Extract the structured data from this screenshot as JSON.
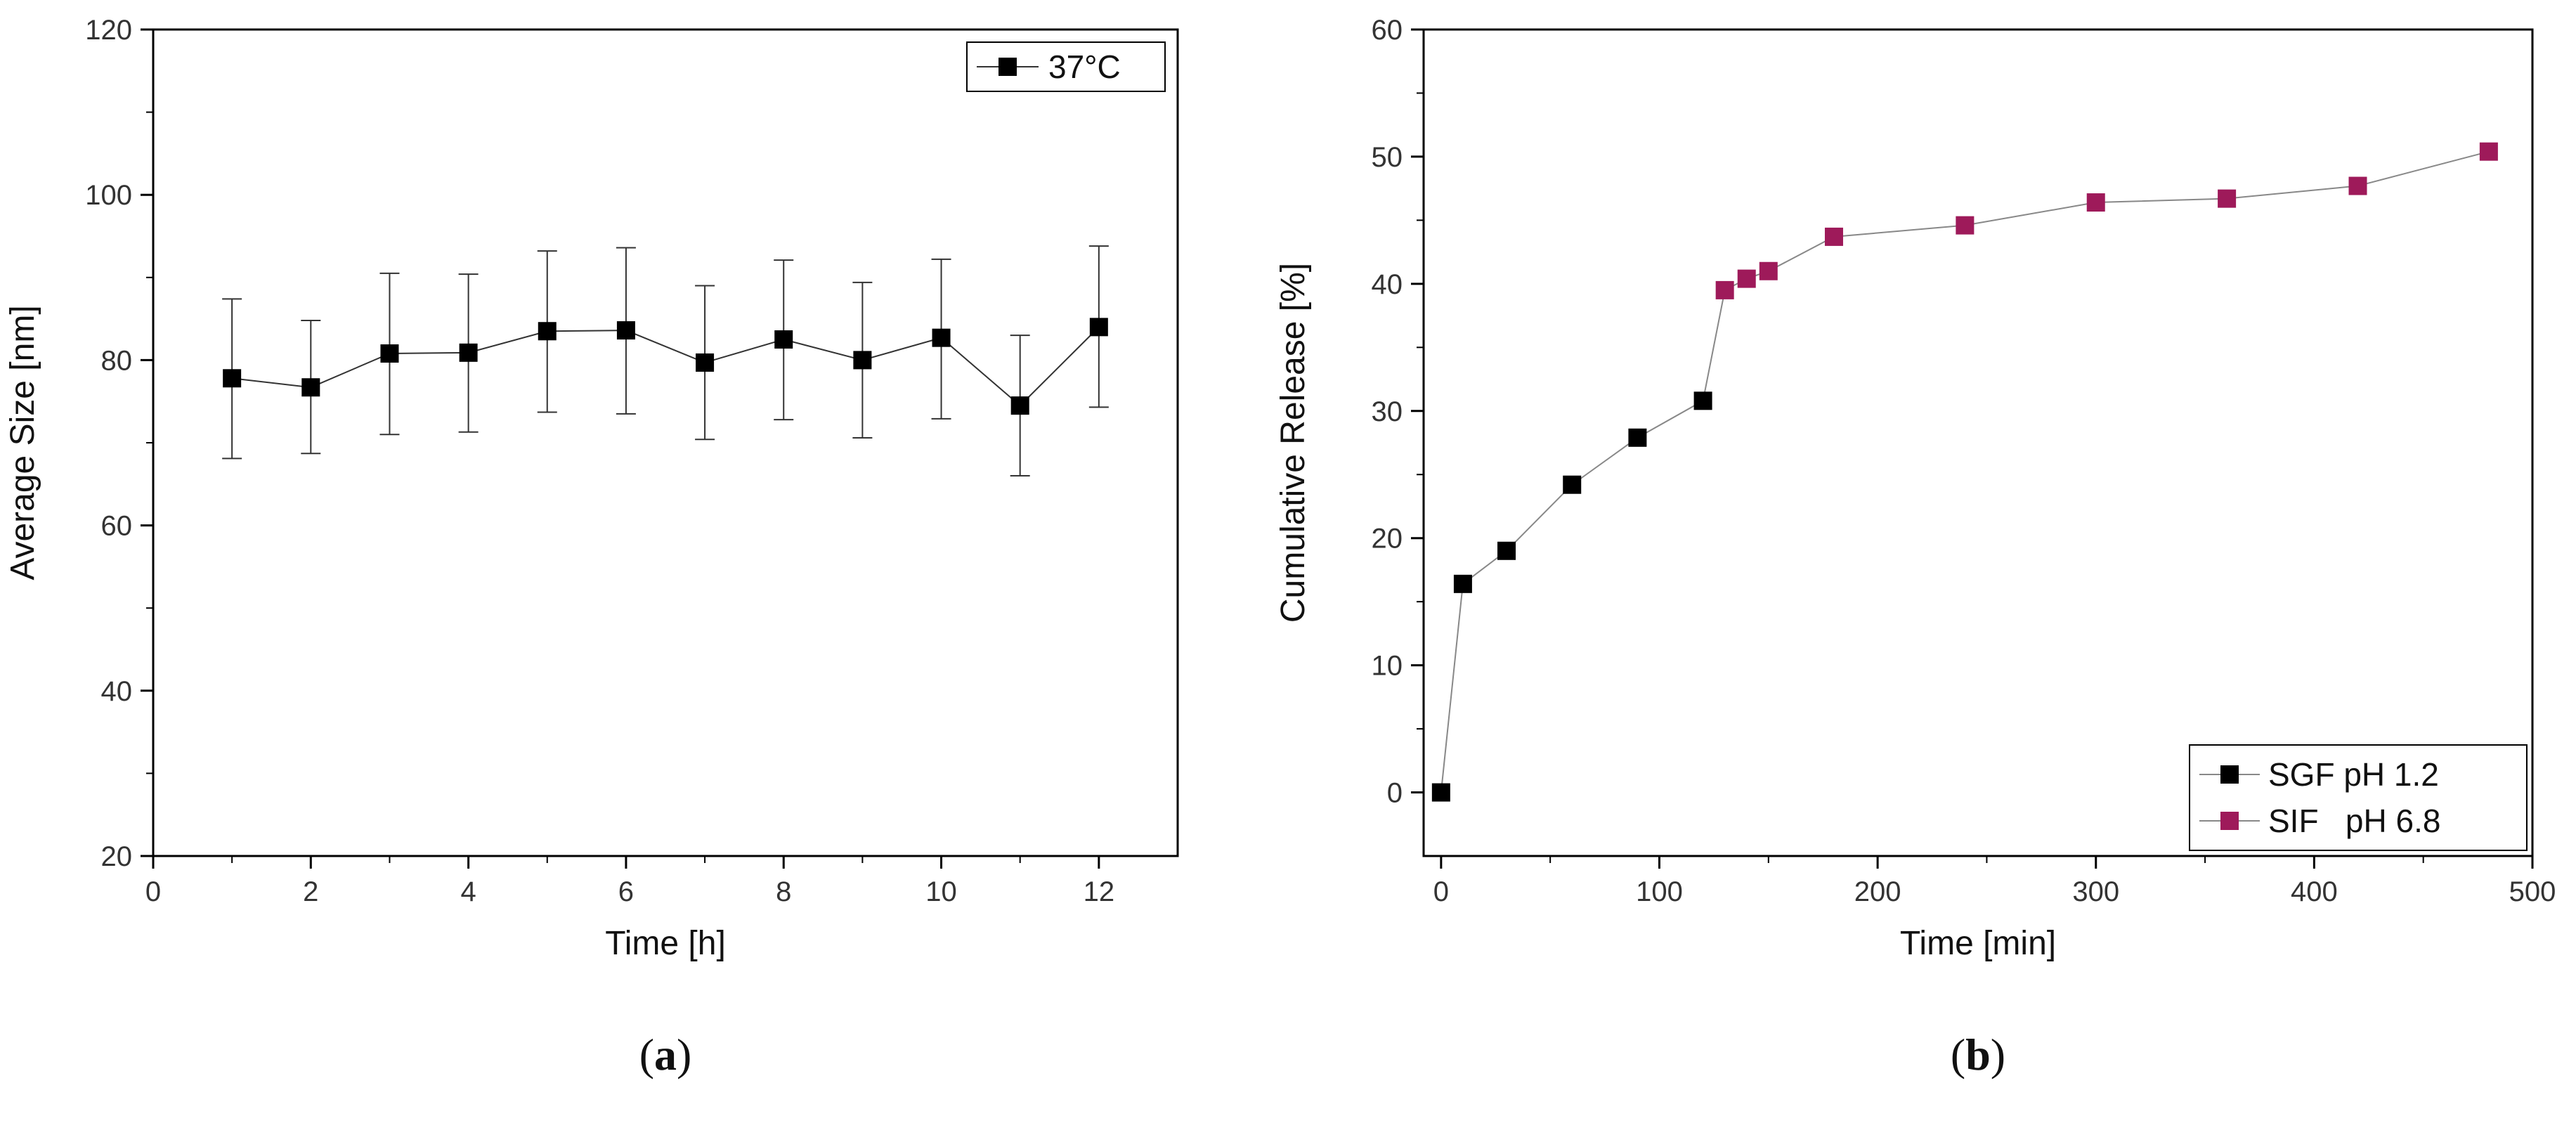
{
  "chart_data": [
    {
      "panel": "(a)",
      "panel_letter": "a",
      "type": "line",
      "title": "",
      "xlabel": "Time [h]",
      "ylabel": "Average Size [nm]",
      "xlim": [
        0,
        13
      ],
      "ylim": [
        20,
        120
      ],
      "xticks": [
        0,
        2,
        4,
        6,
        8,
        10,
        12
      ],
      "yticks": [
        20,
        40,
        60,
        80,
        100,
        120
      ],
      "legend_position": "top-right",
      "series": [
        {
          "name": "37°C",
          "color": "#000000",
          "marker": "square",
          "x": [
            1,
            2,
            3,
            4,
            5,
            6,
            7,
            8,
            9,
            10,
            11,
            12
          ],
          "y": [
            77.8,
            76.7,
            80.8,
            80.9,
            83.5,
            83.6,
            79.7,
            82.5,
            80.0,
            82.7,
            74.5,
            84.0
          ],
          "error_upper": [
            87.4,
            84.8,
            90.5,
            90.4,
            93.2,
            93.6,
            89.0,
            92.1,
            89.4,
            92.2,
            83.0,
            93.8
          ],
          "error_lower": [
            68.1,
            68.7,
            71.0,
            71.3,
            73.7,
            73.5,
            70.4,
            72.8,
            70.6,
            72.9,
            66.0,
            74.3
          ]
        }
      ]
    },
    {
      "panel": "(b)",
      "panel_letter": "b",
      "type": "line",
      "title": "",
      "xlabel": "Time [min]",
      "ylabel": "Cumulative Release [%]",
      "xlim": [
        -8,
        500
      ],
      "ylim": [
        -5,
        60
      ],
      "xticks": [
        0,
        100,
        200,
        300,
        400,
        500
      ],
      "yticks": [
        0,
        10,
        20,
        30,
        40,
        50,
        60
      ],
      "legend_position": "bottom-right",
      "line_color": "#888888",
      "series": [
        {
          "name": "SGF pH 1.2",
          "color": "#000000",
          "marker": "square",
          "x": [
            0,
            10,
            30,
            60,
            90,
            120
          ],
          "y": [
            0,
            16.4,
            19.0,
            24.2,
            27.9,
            30.8
          ]
        },
        {
          "name": "SIF   pH 6.8",
          "color": "#9e1a5a",
          "marker": "square",
          "x": [
            130,
            140,
            150,
            180,
            240,
            300,
            360,
            420,
            480
          ],
          "y": [
            39.5,
            40.4,
            41.0,
            43.7,
            44.6,
            46.4,
            46.7,
            47.7,
            50.4
          ]
        }
      ]
    }
  ]
}
